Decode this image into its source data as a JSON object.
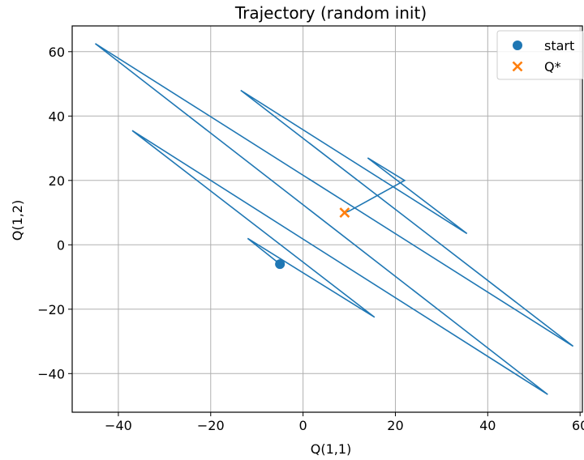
{
  "chart_data": {
    "type": "line",
    "title": "Trajectory (random init)",
    "xlabel": "Q(1,1)",
    "ylabel": "Q(1,2)",
    "xlim": [
      -50,
      60.5
    ],
    "ylim": [
      -52,
      68
    ],
    "x_ticks": [
      -40,
      -20,
      0,
      20,
      40,
      60
    ],
    "y_ticks": [
      -40,
      -20,
      0,
      20,
      40,
      60
    ],
    "x_tick_labels": [
      "−40",
      "−20",
      "0",
      "20",
      "40",
      "60"
    ],
    "y_tick_labels": [
      "−40",
      "−20",
      "0",
      "20",
      "40",
      "60"
    ],
    "grid": true,
    "legend_position": "top-right",
    "series": [
      {
        "kind": "line",
        "color": "#1f77b4",
        "points": [
          [
            -5,
            -6
          ],
          [
            -12,
            2
          ],
          [
            15.5,
            -22.5
          ],
          [
            -37,
            35.5
          ],
          [
            53,
            -46.5
          ],
          [
            -45,
            62.5
          ],
          [
            58.5,
            -31.5
          ],
          [
            -13.5,
            48
          ],
          [
            35.5,
            3.5
          ],
          [
            14,
            27
          ],
          [
            22,
            20
          ],
          [
            10,
            10.5
          ],
          [
            9,
            10
          ]
        ]
      },
      {
        "kind": "scatter",
        "name": "start",
        "marker": "circle",
        "color": "#1f77b4",
        "points": [
          [
            -5,
            -6
          ]
        ]
      },
      {
        "kind": "scatter",
        "name": "Q*",
        "marker": "x",
        "color": "#ff7f0e",
        "points": [
          [
            9,
            10
          ]
        ]
      }
    ]
  }
}
